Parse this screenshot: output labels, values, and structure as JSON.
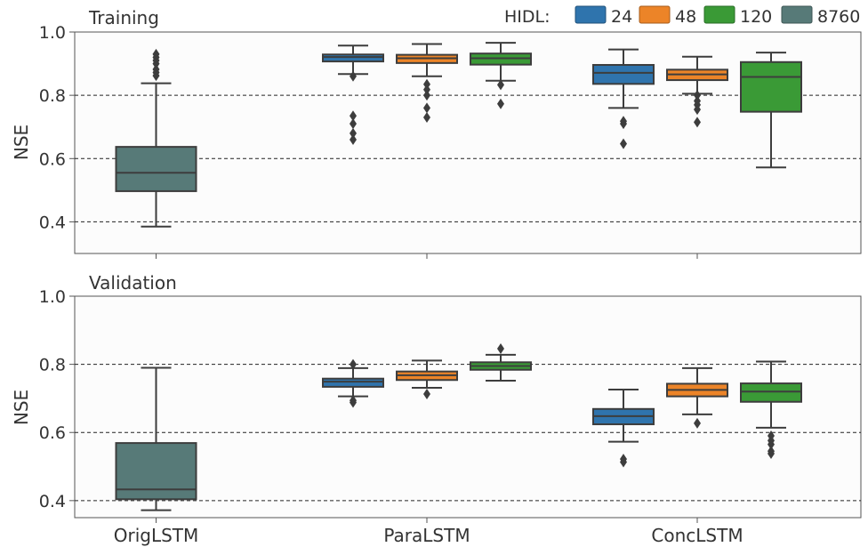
{
  "legend": {
    "title": "HIDL:",
    "items": [
      {
        "label": "24",
        "color": "#2f74ad"
      },
      {
        "label": "48",
        "color": "#ec8428"
      },
      {
        "label": "120",
        "color": "#3a9a36"
      },
      {
        "label": "8760",
        "color": "#577a78"
      }
    ]
  },
  "chart_data": [
    {
      "type": "box",
      "title": "Training",
      "ylabel": "NSE",
      "ylim": [
        0.3,
        1.0
      ],
      "yticks": [
        "0.4",
        "0.6",
        "0.8",
        "1.0"
      ],
      "categories": [
        "OrigLSTM",
        "ParaLSTM",
        "ConcLSTM"
      ],
      "grid": "dashed horizontal at 0.4, 0.6, 0.8",
      "boxes": [
        {
          "category": "OrigLSTM",
          "series": "8760",
          "whisker_low": 0.385,
          "q1": 0.497,
          "median": 0.555,
          "q3": 0.637,
          "whisker_high": 0.838,
          "outliers": [
            0.862,
            0.872,
            0.882,
            0.9,
            0.91,
            0.92,
            0.93
          ]
        },
        {
          "category": "ParaLSTM",
          "series": "24",
          "whisker_low": 0.867,
          "q1": 0.907,
          "median": 0.921,
          "q3": 0.929,
          "whisker_high": 0.957,
          "outliers": [
            0.66,
            0.68,
            0.71,
            0.735,
            0.86
          ]
        },
        {
          "category": "ParaLSTM",
          "series": "48",
          "whisker_low": 0.86,
          "q1": 0.902,
          "median": 0.917,
          "q3": 0.928,
          "whisker_high": 0.962,
          "outliers": [
            0.73,
            0.76,
            0.8,
            0.818,
            0.835
          ]
        },
        {
          "category": "ParaLSTM",
          "series": "120",
          "whisker_low": 0.846,
          "q1": 0.897,
          "median": 0.917,
          "q3": 0.932,
          "whisker_high": 0.966,
          "outliers": [
            0.773,
            0.833
          ]
        },
        {
          "category": "ConcLSTM",
          "series": "24",
          "whisker_low": 0.76,
          "q1": 0.836,
          "median": 0.871,
          "q3": 0.896,
          "whisker_high": 0.945,
          "outliers": [
            0.647,
            0.71,
            0.718
          ]
        },
        {
          "category": "ConcLSTM",
          "series": "48",
          "whisker_low": 0.805,
          "q1": 0.848,
          "median": 0.866,
          "q3": 0.881,
          "whisker_high": 0.922,
          "outliers": [
            0.715,
            0.755,
            0.77,
            0.782,
            0.8
          ]
        },
        {
          "category": "ConcLSTM",
          "series": "120",
          "whisker_low": 0.572,
          "q1": 0.748,
          "median": 0.858,
          "q3": 0.905,
          "whisker_high": 0.935,
          "outliers": []
        }
      ]
    },
    {
      "type": "box",
      "title": "Validation",
      "ylabel": "NSE",
      "ylim": [
        0.35,
        1.0
      ],
      "yticks": [
        "0.4",
        "0.6",
        "0.8",
        "1.0"
      ],
      "categories": [
        "OrigLSTM",
        "ParaLSTM",
        "ConcLSTM"
      ],
      "grid": "dashed horizontal at 0.4, 0.6, 0.8",
      "boxes": [
        {
          "category": "OrigLSTM",
          "series": "8760",
          "whisker_low": 0.372,
          "q1": 0.404,
          "median": 0.433,
          "q3": 0.569,
          "whisker_high": 0.79,
          "outliers": []
        },
        {
          "category": "ParaLSTM",
          "series": "24",
          "whisker_low": 0.706,
          "q1": 0.734,
          "median": 0.749,
          "q3": 0.758,
          "whisker_high": 0.789,
          "outliers": [
            0.688,
            0.694,
            0.8
          ]
        },
        {
          "category": "ParaLSTM",
          "series": "48",
          "whisker_low": 0.731,
          "q1": 0.754,
          "median": 0.768,
          "q3": 0.779,
          "whisker_high": 0.811,
          "outliers": [
            0.713
          ]
        },
        {
          "category": "ParaLSTM",
          "series": "120",
          "whisker_low": 0.752,
          "q1": 0.784,
          "median": 0.795,
          "q3": 0.806,
          "whisker_high": 0.828,
          "outliers": [
            0.846
          ]
        },
        {
          "category": "ConcLSTM",
          "series": "24",
          "whisker_low": 0.573,
          "q1": 0.624,
          "median": 0.648,
          "q3": 0.669,
          "whisker_high": 0.726,
          "outliers": [
            0.513,
            0.522
          ]
        },
        {
          "category": "ConcLSTM",
          "series": "48",
          "whisker_low": 0.653,
          "q1": 0.706,
          "median": 0.725,
          "q3": 0.743,
          "whisker_high": 0.789,
          "outliers": [
            0.627
          ]
        },
        {
          "category": "ConcLSTM",
          "series": "120",
          "whisker_low": 0.614,
          "q1": 0.69,
          "median": 0.72,
          "q3": 0.744,
          "whisker_high": 0.808,
          "outliers": [
            0.538,
            0.545,
            0.565,
            0.576,
            0.59
          ]
        }
      ]
    }
  ]
}
